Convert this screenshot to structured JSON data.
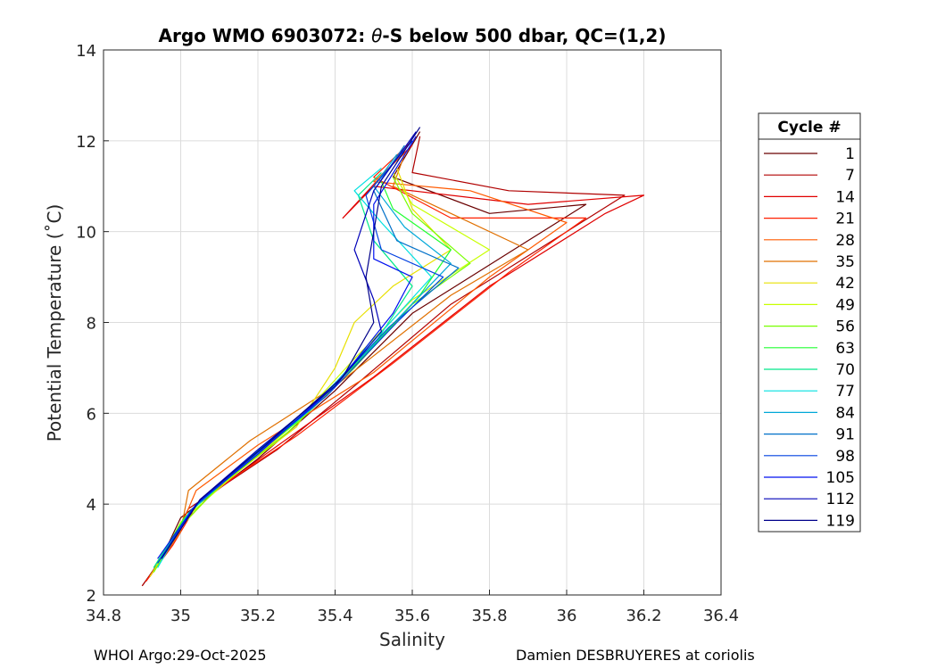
{
  "chart_data": {
    "type": "line",
    "title_prefix": "Argo WMO 6903072: ",
    "title_theta": "θ",
    "title_suffix": "-S below 500 dbar,  QC=(1,2)",
    "xlabel": "Salinity",
    "ylabel": "Potential Temperature (˚C)",
    "xlim": [
      34.8,
      36.4
    ],
    "ylim": [
      2,
      14
    ],
    "xticks": [
      34.8,
      35,
      35.2,
      35.4,
      35.6,
      35.8,
      36,
      36.2,
      36.4
    ],
    "xtick_labels": [
      "34.8",
      "35",
      "35.2",
      "35.4",
      "35.6",
      "35.8",
      "36",
      "36.2",
      "36.4"
    ],
    "yticks": [
      2,
      4,
      6,
      8,
      10,
      12,
      14
    ],
    "ytick_labels": [
      "2",
      "4",
      "6",
      "8",
      "10",
      "12",
      "14"
    ],
    "grid": true,
    "legend_title": "Cycle #",
    "legend_placement": "outside-right",
    "series": [
      {
        "name": "1",
        "color": "#6a0000",
        "points": [
          [
            34.9,
            2.2
          ],
          [
            34.95,
            2.8
          ],
          [
            35.0,
            3.7
          ],
          [
            35.2,
            5.0
          ],
          [
            35.4,
            6.5
          ],
          [
            35.6,
            8.2
          ],
          [
            35.9,
            9.8
          ],
          [
            36.05,
            10.6
          ],
          [
            35.8,
            10.4
          ],
          [
            35.55,
            11.2
          ],
          [
            35.62,
            12.2
          ]
        ]
      },
      {
        "name": "7",
        "color": "#b00000",
        "points": [
          [
            34.9,
            2.2
          ],
          [
            34.96,
            2.9
          ],
          [
            35.02,
            3.9
          ],
          [
            35.25,
            5.2
          ],
          [
            35.45,
            6.6
          ],
          [
            35.7,
            8.4
          ],
          [
            36.0,
            10.0
          ],
          [
            36.15,
            10.8
          ],
          [
            35.85,
            10.9
          ],
          [
            35.6,
            11.3
          ],
          [
            35.62,
            12.1
          ]
        ]
      },
      {
        "name": "14",
        "color": "#e00000",
        "points": [
          [
            34.91,
            2.3
          ],
          [
            34.97,
            3.0
          ],
          [
            35.03,
            3.9
          ],
          [
            35.22,
            5.1
          ],
          [
            35.5,
            6.8
          ],
          [
            35.8,
            8.8
          ],
          [
            36.1,
            10.4
          ],
          [
            36.2,
            10.8
          ],
          [
            35.9,
            10.6
          ],
          [
            35.5,
            11.0
          ],
          [
            35.42,
            10.3
          ],
          [
            35.55,
            11.5
          ],
          [
            35.6,
            11.9
          ]
        ]
      },
      {
        "name": "21",
        "color": "#ff2000",
        "points": [
          [
            34.91,
            2.3
          ],
          [
            34.98,
            3.1
          ],
          [
            35.05,
            4.1
          ],
          [
            35.3,
            5.5
          ],
          [
            35.55,
            7.1
          ],
          [
            35.85,
            9.1
          ],
          [
            36.05,
            10.3
          ],
          [
            35.7,
            10.3
          ],
          [
            35.5,
            11.2
          ],
          [
            35.6,
            12.0
          ]
        ]
      },
      {
        "name": "28",
        "color": "#ff5a00",
        "points": [
          [
            34.92,
            2.4
          ],
          [
            34.99,
            3.3
          ],
          [
            35.04,
            4.3
          ],
          [
            35.2,
            5.3
          ],
          [
            35.5,
            6.9
          ],
          [
            35.8,
            9.0
          ],
          [
            36.0,
            10.2
          ],
          [
            35.75,
            10.9
          ],
          [
            35.5,
            11.1
          ],
          [
            35.59,
            11.8
          ]
        ]
      },
      {
        "name": "35",
        "color": "#e07000",
        "points": [
          [
            34.92,
            2.4
          ],
          [
            35.0,
            3.4
          ],
          [
            35.02,
            4.3
          ],
          [
            35.18,
            5.4
          ],
          [
            35.4,
            6.6
          ],
          [
            35.7,
            8.6
          ],
          [
            35.9,
            9.6
          ],
          [
            35.7,
            10.4
          ],
          [
            35.55,
            11.0
          ],
          [
            35.58,
            11.7
          ]
        ]
      },
      {
        "name": "42",
        "color": "#e8e000",
        "points": [
          [
            34.92,
            2.4
          ],
          [
            35.0,
            3.5
          ],
          [
            35.1,
            4.4
          ],
          [
            35.3,
            5.7
          ],
          [
            35.4,
            7.0
          ],
          [
            35.45,
            8.0
          ],
          [
            35.55,
            8.8
          ],
          [
            35.7,
            9.6
          ],
          [
            35.6,
            10.5
          ],
          [
            35.56,
            11.4
          ]
        ]
      },
      {
        "name": "49",
        "color": "#c8ff00",
        "points": [
          [
            34.93,
            2.5
          ],
          [
            35.0,
            3.6
          ],
          [
            35.12,
            4.5
          ],
          [
            35.3,
            5.8
          ],
          [
            35.45,
            7.2
          ],
          [
            35.6,
            8.5
          ],
          [
            35.8,
            9.6
          ],
          [
            35.6,
            10.6
          ],
          [
            35.55,
            11.3
          ]
        ]
      },
      {
        "name": "56",
        "color": "#78ff00",
        "points": [
          [
            34.93,
            2.5
          ],
          [
            35.01,
            3.6
          ],
          [
            35.1,
            4.4
          ],
          [
            35.28,
            5.6
          ],
          [
            35.45,
            7.0
          ],
          [
            35.6,
            8.4
          ],
          [
            35.75,
            9.3
          ],
          [
            35.6,
            10.4
          ],
          [
            35.55,
            11.2
          ]
        ]
      },
      {
        "name": "63",
        "color": "#20ff30",
        "points": [
          [
            34.93,
            2.6
          ],
          [
            35.01,
            3.7
          ],
          [
            35.12,
            4.6
          ],
          [
            35.3,
            5.8
          ],
          [
            35.48,
            7.3
          ],
          [
            35.62,
            8.6
          ],
          [
            35.7,
            9.6
          ],
          [
            35.55,
            10.5
          ],
          [
            35.52,
            11.1
          ]
        ]
      },
      {
        "name": "70",
        "color": "#00e88a",
        "points": [
          [
            34.93,
            2.6
          ],
          [
            35.02,
            3.8
          ],
          [
            35.14,
            4.7
          ],
          [
            35.32,
            6.0
          ],
          [
            35.5,
            7.5
          ],
          [
            35.6,
            8.8
          ],
          [
            35.5,
            9.8
          ],
          [
            35.46,
            10.8
          ],
          [
            35.52,
            11.3
          ]
        ]
      },
      {
        "name": "77",
        "color": "#00e0e0",
        "points": [
          [
            34.94,
            2.6
          ],
          [
            35.02,
            3.8
          ],
          [
            35.15,
            4.8
          ],
          [
            35.34,
            6.1
          ],
          [
            35.5,
            7.6
          ],
          [
            35.65,
            9.0
          ],
          [
            35.52,
            10.2
          ],
          [
            35.45,
            10.9
          ],
          [
            35.52,
            11.4
          ]
        ]
      },
      {
        "name": "84",
        "color": "#00a8d8",
        "points": [
          [
            34.94,
            2.7
          ],
          [
            35.03,
            3.9
          ],
          [
            35.16,
            4.9
          ],
          [
            35.35,
            6.2
          ],
          [
            35.52,
            7.7
          ],
          [
            35.7,
            9.3
          ],
          [
            35.58,
            10.1
          ],
          [
            35.5,
            11.0
          ],
          [
            35.56,
            11.7
          ]
        ]
      },
      {
        "name": "91",
        "color": "#0070c8",
        "points": [
          [
            34.94,
            2.7
          ],
          [
            35.03,
            3.9
          ],
          [
            35.18,
            5.0
          ],
          [
            35.36,
            6.3
          ],
          [
            35.54,
            7.9
          ],
          [
            35.72,
            9.2
          ],
          [
            35.56,
            9.8
          ],
          [
            35.5,
            10.9
          ],
          [
            35.58,
            11.9
          ]
        ]
      },
      {
        "name": "98",
        "color": "#0040e0",
        "points": [
          [
            34.94,
            2.7
          ],
          [
            35.04,
            4.0
          ],
          [
            35.18,
            5.0
          ],
          [
            35.38,
            6.4
          ],
          [
            35.56,
            8.0
          ],
          [
            35.68,
            9.0
          ],
          [
            35.52,
            9.6
          ],
          [
            35.48,
            10.8
          ],
          [
            35.6,
            12.0
          ]
        ]
      },
      {
        "name": "105",
        "color": "#0010f0",
        "points": [
          [
            34.94,
            2.8
          ],
          [
            35.04,
            4.0
          ],
          [
            35.2,
            5.1
          ],
          [
            35.4,
            6.6
          ],
          [
            35.55,
            8.2
          ],
          [
            35.6,
            9.0
          ],
          [
            35.5,
            9.4
          ],
          [
            35.5,
            10.6
          ],
          [
            35.61,
            12.1
          ]
        ]
      },
      {
        "name": "112",
        "color": "#0000b8",
        "points": [
          [
            34.95,
            2.8
          ],
          [
            35.05,
            4.1
          ],
          [
            35.2,
            5.2
          ],
          [
            35.4,
            6.6
          ],
          [
            35.52,
            7.8
          ],
          [
            35.5,
            8.5
          ],
          [
            35.45,
            9.6
          ],
          [
            35.5,
            10.9
          ],
          [
            35.61,
            12.2
          ]
        ]
      },
      {
        "name": "119",
        "color": "#00008a",
        "points": [
          [
            34.95,
            2.8
          ],
          [
            35.05,
            4.1
          ],
          [
            35.22,
            5.3
          ],
          [
            35.42,
            6.8
          ],
          [
            35.5,
            8.0
          ],
          [
            35.48,
            9.0
          ],
          [
            35.5,
            10.0
          ],
          [
            35.52,
            11.0
          ],
          [
            35.62,
            12.3
          ]
        ]
      }
    ]
  },
  "footer": {
    "left": "WHOI Argo:29-Oct-2025",
    "right": "Damien DESBRUYERES at coriolis"
  }
}
